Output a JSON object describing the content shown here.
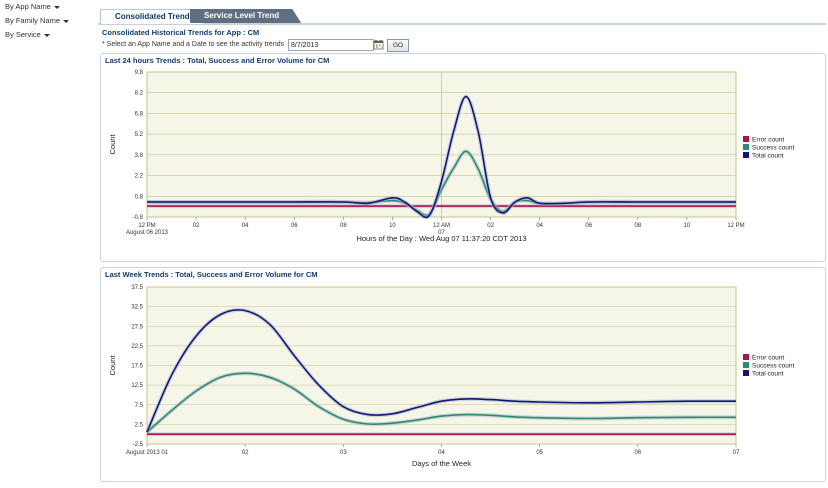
{
  "sidebar": {
    "items": [
      {
        "label": "By App Name"
      },
      {
        "label": "By Family Name"
      },
      {
        "label": "By Service"
      }
    ]
  },
  "tabs": {
    "consolidated": "Consolidated Trend",
    "service_level": "Service Level Trend"
  },
  "page_title": "Consolidated Historical Trends for App : CM",
  "form": {
    "instruction": "* Select an App Name and a Date to see the activity trends",
    "date_value": "8/7/2013",
    "go_label": "GO"
  },
  "colors": {
    "error": "#b0104a",
    "success": "#2e8a6e",
    "total": "#14147a",
    "plot_bg": "#f5f5e8"
  },
  "chart_data": [
    {
      "type": "line",
      "title": "Last 24 hours Trends : Total, Success and Error Volume for CM",
      "xlabel": "Hours of the Day : Wed Aug 07 11:37:20 CDT 2013",
      "ylabel": "Count",
      "xlim": [
        0,
        24
      ],
      "ylim": [
        -0.8,
        9.8
      ],
      "yticks": [
        "9.8",
        "8.2",
        "6.8",
        "5.2",
        "3.8",
        "2.2",
        "0.8",
        "-0.8"
      ],
      "xticks": [
        {
          "x": 0,
          "label": "12 PM",
          "sub": "August 06 2013"
        },
        {
          "x": 2,
          "label": "02",
          "sub": ""
        },
        {
          "x": 4,
          "label": "04",
          "sub": ""
        },
        {
          "x": 6,
          "label": "06",
          "sub": ""
        },
        {
          "x": 8,
          "label": "08",
          "sub": ""
        },
        {
          "x": 10,
          "label": "10",
          "sub": ""
        },
        {
          "x": 12,
          "label": "12 AM",
          "sub": "07"
        },
        {
          "x": 14,
          "label": "02",
          "sub": ""
        },
        {
          "x": 16,
          "label": "04",
          "sub": ""
        },
        {
          "x": 18,
          "label": "06",
          "sub": ""
        },
        {
          "x": 20,
          "label": "08",
          "sub": ""
        },
        {
          "x": 22,
          "label": "10",
          "sub": ""
        },
        {
          "x": 24,
          "label": "12 PM",
          "sub": ""
        }
      ],
      "legend": [
        "Error count",
        "Success count",
        "Total count"
      ],
      "series": [
        {
          "name": "Error count",
          "color": "#b0104a",
          "x": [
            0,
            2,
            4,
            6,
            8,
            9,
            10,
            10.5,
            11,
            11.5,
            12,
            12.5,
            13,
            13.5,
            14,
            14.5,
            15,
            15.5,
            16,
            17,
            18,
            20,
            22,
            24
          ],
          "y": [
            0,
            0,
            0,
            0,
            0,
            0,
            0,
            0,
            0,
            0,
            0,
            0,
            0,
            0,
            0,
            0,
            0,
            0,
            0,
            0,
            0,
            0,
            0,
            0
          ]
        },
        {
          "name": "Success count",
          "color": "#2e8a6e",
          "x": [
            0,
            2,
            4,
            6,
            8,
            9,
            10,
            10.5,
            11,
            11.5,
            12,
            12.5,
            13,
            13.5,
            14,
            14.5,
            15,
            15.5,
            16,
            17,
            18,
            20,
            22,
            24
          ],
          "y": [
            0.3,
            0.3,
            0.3,
            0.3,
            0.3,
            0.25,
            0.4,
            0.2,
            -0.3,
            -0.6,
            1.2,
            2.8,
            4,
            2.7,
            0.5,
            -0.4,
            0.3,
            0.4,
            0.2,
            0.2,
            0.3,
            0.3,
            0.3,
            0.3
          ]
        },
        {
          "name": "Total count",
          "color": "#14147a",
          "x": [
            0,
            2,
            4,
            6,
            8,
            9,
            10,
            10.5,
            11,
            11.5,
            12,
            12.5,
            13,
            13.5,
            14,
            14.5,
            15,
            15.5,
            16,
            17,
            18,
            20,
            22,
            24
          ],
          "y": [
            0.3,
            0.3,
            0.3,
            0.3,
            0.3,
            0.2,
            0.6,
            0.3,
            -0.4,
            -0.7,
            1.8,
            5.5,
            8,
            5.4,
            0.6,
            -0.5,
            0.3,
            0.6,
            0.2,
            0.2,
            0.3,
            0.3,
            0.3,
            0.3
          ]
        }
      ]
    },
    {
      "type": "line",
      "title": "Last Week Trends : Total, Success and Error Volume for CM",
      "xlabel": "Days of the Week",
      "ylabel": "Count",
      "xlim": [
        1,
        7
      ],
      "ylim": [
        -2.5,
        37.5
      ],
      "yticks": [
        "37.5",
        "32.5",
        "27.5",
        "22.5",
        "17.5",
        "12.5",
        "7.5",
        "2.5",
        "-2.5"
      ],
      "xticks": [
        {
          "x": 1,
          "label": "August 2013 01",
          "sub": ""
        },
        {
          "x": 2,
          "label": "02",
          "sub": ""
        },
        {
          "x": 3,
          "label": "03",
          "sub": ""
        },
        {
          "x": 4,
          "label": "04",
          "sub": ""
        },
        {
          "x": 5,
          "label": "05",
          "sub": ""
        },
        {
          "x": 6,
          "label": "06",
          "sub": ""
        },
        {
          "x": 7,
          "label": "07",
          "sub": ""
        }
      ],
      "legend": [
        "Error count",
        "Success count",
        "Total count"
      ],
      "series": [
        {
          "name": "Error count",
          "color": "#b0104a",
          "x": [
            1,
            1.5,
            2,
            2.5,
            3,
            3.5,
            4,
            4.5,
            5,
            5.5,
            6,
            6.5,
            7
          ],
          "y": [
            0,
            0,
            0,
            0,
            0,
            0,
            0,
            0,
            0,
            0,
            0,
            0,
            0
          ]
        },
        {
          "name": "Success count",
          "color": "#2e8a6e",
          "x": [
            1,
            1.25,
            1.5,
            1.75,
            2,
            2.25,
            2.5,
            2.75,
            3,
            3.25,
            3.5,
            3.75,
            4,
            4.25,
            4.5,
            4.75,
            5,
            5.5,
            6,
            6.5,
            7
          ],
          "y": [
            0.5,
            6,
            11,
            14.5,
            15.5,
            14.5,
            11.5,
            7,
            3.8,
            2.6,
            2.8,
            3.6,
            4.6,
            5,
            4.8,
            4.4,
            4.2,
            4,
            4.2,
            4.3,
            4.3
          ]
        },
        {
          "name": "Total count",
          "color": "#14147a",
          "x": [
            1,
            1.25,
            1.5,
            1.75,
            2,
            2.25,
            2.5,
            2.75,
            3,
            3.25,
            3.5,
            3.75,
            4,
            4.25,
            4.5,
            4.75,
            5,
            5.5,
            6,
            6.5,
            7
          ],
          "y": [
            0.5,
            15,
            25,
            30.5,
            31.5,
            28,
            20,
            12.5,
            7,
            5,
            5.2,
            6.8,
            8.4,
            9,
            8.8,
            8.4,
            8.2,
            8,
            8.2,
            8.4,
            8.4
          ]
        }
      ]
    }
  ]
}
